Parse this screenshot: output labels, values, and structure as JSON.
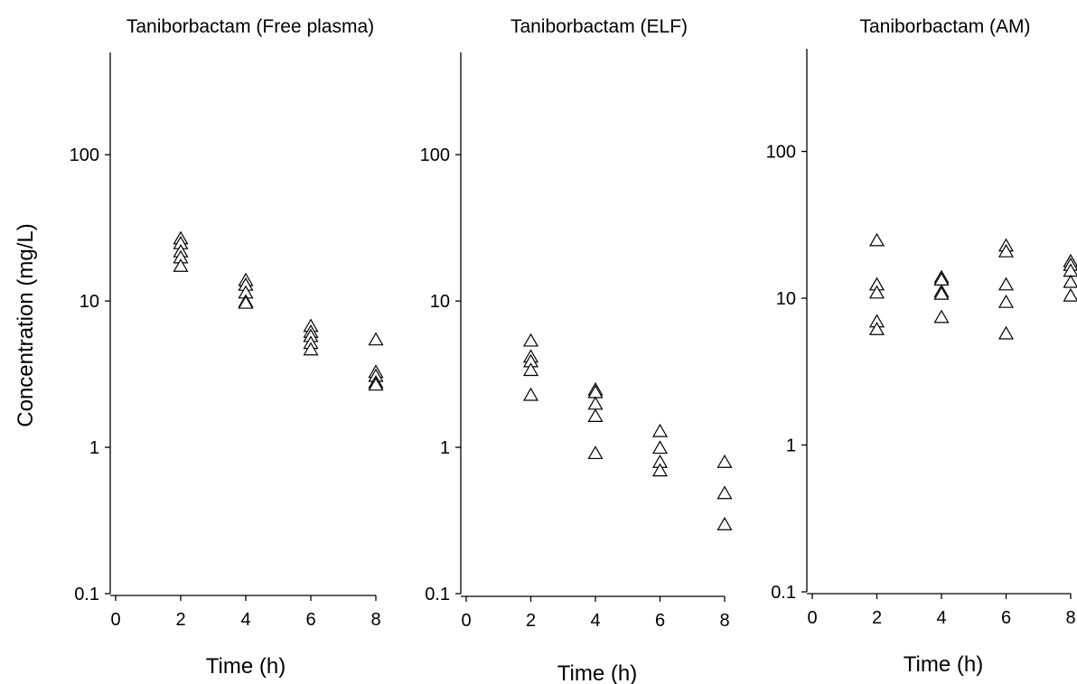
{
  "chart_data": [
    {
      "type": "scatter",
      "title": "Taniborbactam (Free plasma)",
      "xlabel": "Time (h)",
      "ylabel": "Concentration (mg/L)",
      "yscale": "log",
      "ylim": [
        0.1,
        500
      ],
      "xlim": [
        -0.2,
        8.2
      ],
      "xticks": [
        "0",
        "2",
        "4",
        "6",
        "8"
      ],
      "yticks": [
        "0.1",
        "1",
        "10",
        "100"
      ],
      "marker": "open-triangle",
      "points": [
        {
          "x": 2,
          "y": 27
        },
        {
          "x": 2,
          "y": 25
        },
        {
          "x": 2,
          "y": 22
        },
        {
          "x": 2,
          "y": 20
        },
        {
          "x": 2,
          "y": 17.5
        },
        {
          "x": 4,
          "y": 14
        },
        {
          "x": 4,
          "y": 13
        },
        {
          "x": 4,
          "y": 11.5
        },
        {
          "x": 4,
          "y": 10
        },
        {
          "x": 4,
          "y": 9.8
        },
        {
          "x": 6,
          "y": 6.8
        },
        {
          "x": 6,
          "y": 6.2
        },
        {
          "x": 6,
          "y": 5.8
        },
        {
          "x": 6,
          "y": 5.2
        },
        {
          "x": 6,
          "y": 4.7
        },
        {
          "x": 8,
          "y": 5.5
        },
        {
          "x": 8,
          "y": 3.3
        },
        {
          "x": 8,
          "y": 3.1
        },
        {
          "x": 8,
          "y": 2.8
        },
        {
          "x": 8,
          "y": 2.7
        }
      ]
    },
    {
      "type": "scatter",
      "title": "Taniborbactam (ELF)",
      "xlabel": "Time (h)",
      "ylabel": "",
      "yscale": "log",
      "ylim": [
        0.1,
        500
      ],
      "xlim": [
        -0.2,
        8.2
      ],
      "xticks": [
        "0",
        "2",
        "4",
        "6",
        "8"
      ],
      "yticks": [
        "0.1",
        "1",
        "10",
        "100"
      ],
      "marker": "open-triangle",
      "points": [
        {
          "x": 2,
          "y": 5.4
        },
        {
          "x": 2,
          "y": 4.2
        },
        {
          "x": 2,
          "y": 3.9
        },
        {
          "x": 2,
          "y": 3.4
        },
        {
          "x": 2,
          "y": 2.3
        },
        {
          "x": 4,
          "y": 2.5
        },
        {
          "x": 4,
          "y": 2.4
        },
        {
          "x": 4,
          "y": 2.0
        },
        {
          "x": 4,
          "y": 1.65
        },
        {
          "x": 4,
          "y": 0.92
        },
        {
          "x": 6,
          "y": 1.3
        },
        {
          "x": 6,
          "y": 1.0
        },
        {
          "x": 6,
          "y": 0.8
        },
        {
          "x": 6,
          "y": 0.7
        },
        {
          "x": 8,
          "y": 0.8
        },
        {
          "x": 8,
          "y": 0.49
        },
        {
          "x": 8,
          "y": 0.3
        }
      ]
    },
    {
      "type": "scatter",
      "title": "Taniborbactam (AM)",
      "xlabel": "Time (h)",
      "ylabel": "",
      "yscale": "log",
      "ylim": [
        0.1,
        500
      ],
      "xlim": [
        -0.2,
        8.2
      ],
      "xticks": [
        "0",
        "2",
        "4",
        "6",
        "8"
      ],
      "yticks": [
        "0.1",
        "1",
        "10",
        "100"
      ],
      "marker": "open-triangle",
      "points": [
        {
          "x": 2,
          "y": 25
        },
        {
          "x": 2,
          "y": 12.5
        },
        {
          "x": 2,
          "y": 11
        },
        {
          "x": 2,
          "y": 7
        },
        {
          "x": 2,
          "y": 6.2
        },
        {
          "x": 4,
          "y": 14
        },
        {
          "x": 4,
          "y": 13.5
        },
        {
          "x": 4,
          "y": 11.2
        },
        {
          "x": 4,
          "y": 10.8
        },
        {
          "x": 4,
          "y": 7.5
        },
        {
          "x": 6,
          "y": 23
        },
        {
          "x": 6,
          "y": 21
        },
        {
          "x": 6,
          "y": 12.5
        },
        {
          "x": 6,
          "y": 9.5
        },
        {
          "x": 6,
          "y": 5.8
        },
        {
          "x": 8,
          "y": 18
        },
        {
          "x": 8,
          "y": 17
        },
        {
          "x": 8,
          "y": 15.5
        },
        {
          "x": 8,
          "y": 13
        },
        {
          "x": 8,
          "y": 10.5
        }
      ]
    }
  ]
}
